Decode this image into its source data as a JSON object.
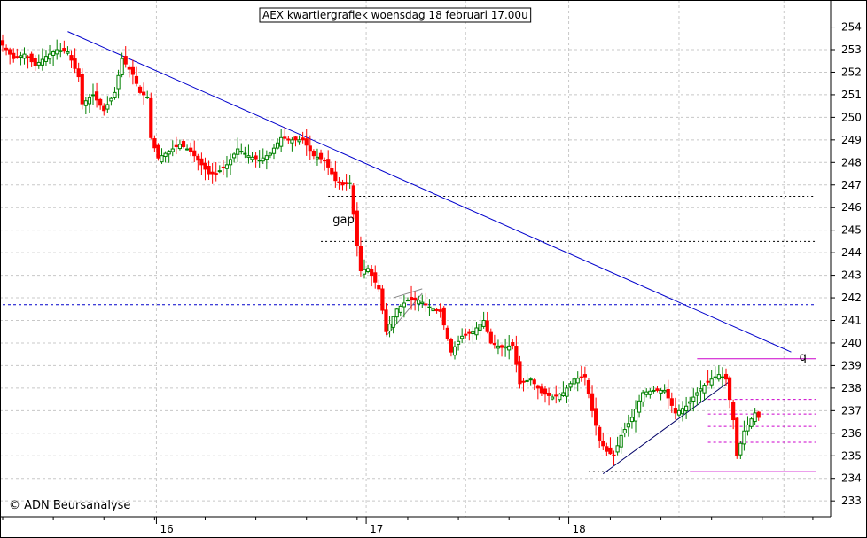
{
  "chart_data": {
    "type": "candlestick",
    "title": "AEX kwartiergrafiek woensdag 18 februari 17.00u",
    "watermark": "© ADN Beursanalyse",
    "ylim": [
      232.3,
      255.2
    ],
    "y_ticks": [
      233,
      234,
      235,
      236,
      237,
      238,
      239,
      240,
      241,
      242,
      243,
      244,
      245,
      246,
      247,
      248,
      249,
      250,
      251,
      252,
      253,
      254
    ],
    "x_day_labels": [
      {
        "label": "16",
        "index": 43
      },
      {
        "label": "17",
        "index": 101
      },
      {
        "label": "18",
        "index": 157
      }
    ],
    "grid": true,
    "colors": {
      "up": "#008000",
      "down": "#ff0000",
      "trend": "#0000cc",
      "support": "#cc00cc",
      "dotted": "#000000"
    },
    "annotations": [
      {
        "text": "gap",
        "index": 91,
        "value": 245.5
      },
      {
        "text": "q",
        "index": 220,
        "value": 239.4
      }
    ],
    "trendlines": [
      {
        "name": "downtrend",
        "from": {
          "index": 18,
          "value": 253.8
        },
        "to": {
          "index": 218,
          "value": 239.6
        }
      },
      {
        "name": "uptrend",
        "from": {
          "index": 166,
          "value": 234.2
        },
        "to": {
          "index": 201,
          "value": 238.3
        }
      },
      {
        "name": "wedge",
        "from": {
          "index": 106,
          "value": 240.3
        },
        "to": {
          "index": 116,
          "value": 242.2
        }
      },
      {
        "name": "wedge-top",
        "from": {
          "index": 108,
          "value": 242.0
        },
        "to": {
          "index": 116,
          "value": 242.4
        }
      }
    ],
    "hlines": [
      {
        "value": 246.5,
        "from": 90,
        "to": 225,
        "style": "dotted-black"
      },
      {
        "value": 244.5,
        "from": 88,
        "to": 225,
        "style": "dotted-black"
      },
      {
        "value": 241.7,
        "from": 0,
        "to": 225,
        "style": "dotted-blue"
      },
      {
        "value": 234.3,
        "from": 162,
        "to": 190,
        "style": "dotted-black"
      },
      {
        "value": 239.3,
        "from": 192,
        "to": 225,
        "style": "solid-magenta"
      },
      {
        "value": 234.3,
        "from": 190,
        "to": 225,
        "style": "solid-magenta"
      },
      {
        "value": 237.5,
        "from": 195,
        "to": 225,
        "style": "dashed-magenta"
      },
      {
        "value": 236.85,
        "from": 195,
        "to": 225,
        "style": "dashed-magenta"
      },
      {
        "value": 236.3,
        "from": 195,
        "to": 225,
        "style": "dashed-magenta"
      },
      {
        "value": 235.6,
        "from": 195,
        "to": 225,
        "style": "dashed-magenta"
      }
    ],
    "anchors": [
      [
        0,
        253.2
      ],
      [
        3,
        252.6
      ],
      [
        6,
        252.8
      ],
      [
        9,
        252.3
      ],
      [
        12,
        252.7
      ],
      [
        15,
        253.0
      ],
      [
        18,
        252.9
      ],
      [
        21,
        251.8
      ],
      [
        22,
        250.6
      ],
      [
        25,
        251.0
      ],
      [
        28,
        250.3
      ],
      [
        31,
        251.1
      ],
      [
        33,
        252.6
      ],
      [
        36,
        251.9
      ],
      [
        38,
        251.1
      ],
      [
        40,
        250.9
      ],
      [
        41,
        249.1
      ],
      [
        43,
        248.2
      ],
      [
        46,
        248.5
      ],
      [
        49,
        248.8
      ],
      [
        52,
        248.5
      ],
      [
        55,
        247.9
      ],
      [
        57,
        247.5
      ],
      [
        59,
        247.5
      ],
      [
        62,
        247.9
      ],
      [
        65,
        248.6
      ],
      [
        68,
        248.3
      ],
      [
        71,
        248.1
      ],
      [
        74,
        248.4
      ],
      [
        77,
        249.1
      ],
      [
        80,
        249.0
      ],
      [
        83,
        249.0
      ],
      [
        86,
        248.3
      ],
      [
        89,
        248.1
      ],
      [
        92,
        247.2
      ],
      [
        94,
        247.0
      ],
      [
        96,
        247.1
      ],
      [
        98,
        244.3
      ],
      [
        99,
        243.2
      ],
      [
        101,
        243.3
      ],
      [
        104,
        242.4
      ],
      [
        106,
        240.5
      ],
      [
        109,
        241.5
      ],
      [
        112,
        241.9
      ],
      [
        115,
        241.9
      ],
      [
        118,
        241.6
      ],
      [
        121,
        241.4
      ],
      [
        124,
        239.6
      ],
      [
        127,
        240.3
      ],
      [
        130,
        240.5
      ],
      [
        133,
        241.0
      ],
      [
        135,
        240.0
      ],
      [
        138,
        239.8
      ],
      [
        141,
        239.9
      ],
      [
        143,
        238.2
      ],
      [
        146,
        238.4
      ],
      [
        149,
        237.8
      ],
      [
        152,
        237.6
      ],
      [
        155,
        237.8
      ],
      [
        158,
        238.4
      ],
      [
        161,
        238.5
      ],
      [
        163,
        237.0
      ],
      [
        165,
        235.7
      ],
      [
        167,
        235.2
      ],
      [
        169,
        235.0
      ],
      [
        171,
        235.9
      ],
      [
        174,
        236.7
      ],
      [
        177,
        237.8
      ],
      [
        180,
        237.9
      ],
      [
        183,
        237.9
      ],
      [
        186,
        236.9
      ],
      [
        189,
        237.2
      ],
      [
        192,
        237.8
      ],
      [
        195,
        238.3
      ],
      [
        198,
        238.6
      ],
      [
        200,
        238.4
      ],
      [
        202,
        236.6
      ],
      [
        203,
        235.0
      ],
      [
        205,
        236.1
      ],
      [
        208,
        236.9
      ],
      [
        209,
        236.7
      ]
    ]
  }
}
